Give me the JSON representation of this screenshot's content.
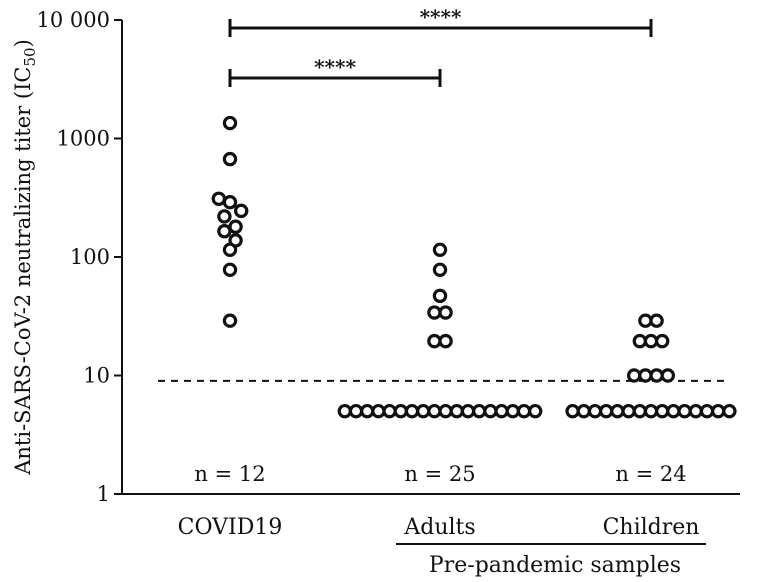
{
  "chart_data": {
    "type": "scatter",
    "ylabel": "Anti-SARS-CoV-2 neutralizing titer (IC",
    "ylabel_sub": "50",
    "ylabel_close": ")",
    "yscale": "log",
    "ylim": [
      1,
      10000
    ],
    "yticks": [
      1,
      10,
      100,
      1000,
      10000
    ],
    "ytick_labels": [
      "1",
      "10",
      "100",
      "1000",
      "10 000"
    ],
    "categories": [
      "COVID19",
      "Adults",
      "Children"
    ],
    "group_label": "Pre-pandemic samples",
    "threshold": 9,
    "series": [
      {
        "name": "COVID19",
        "n_label": "n = 12",
        "values": [
          1350,
          670,
          310,
          290,
          245,
          220,
          180,
          165,
          138,
          115,
          78,
          29
        ]
      },
      {
        "name": "Adults",
        "n_label": "n = 25",
        "values": [
          115,
          78,
          47,
          34,
          34,
          19.5,
          19.5,
          5,
          5,
          5,
          5,
          5,
          5,
          5,
          5,
          5,
          5,
          5,
          5,
          5,
          5,
          5,
          5,
          5,
          5
        ]
      },
      {
        "name": "Children",
        "n_label": "n = 24",
        "values": [
          29,
          29,
          19.5,
          19.5,
          19.5,
          10,
          10,
          10,
          10,
          5,
          5,
          5,
          5,
          5,
          5,
          5,
          5,
          5,
          5,
          5,
          5,
          5,
          5,
          5
        ]
      }
    ],
    "comparisons": [
      {
        "from": "COVID19",
        "to": "Adults",
        "label": "****"
      },
      {
        "from": "COVID19",
        "to": "Children",
        "label": "****"
      }
    ]
  }
}
